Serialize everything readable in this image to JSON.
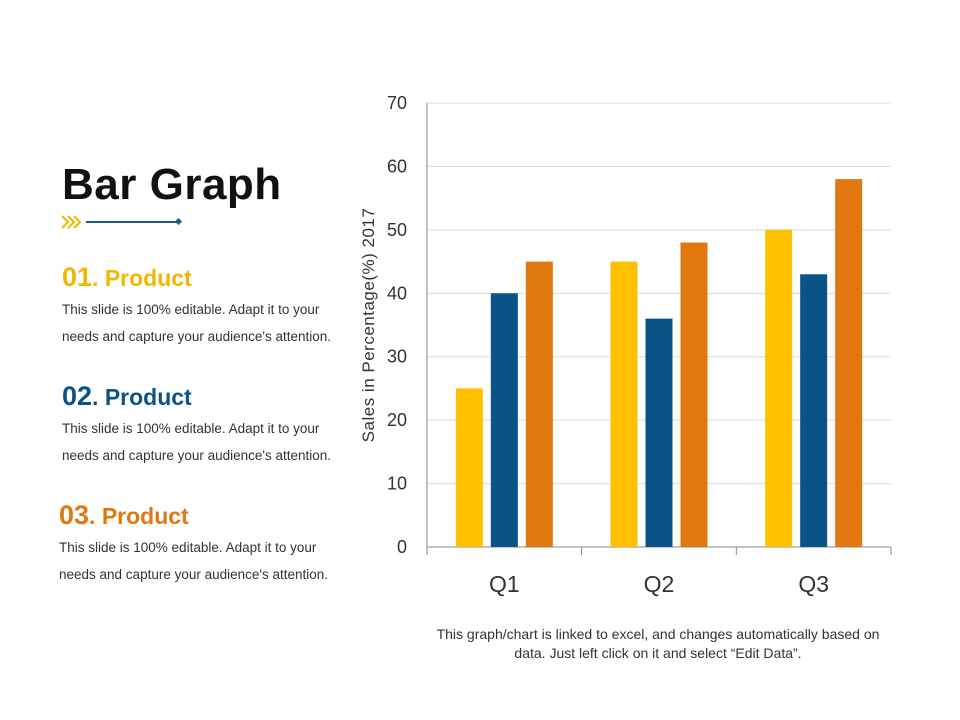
{
  "slide": {
    "title": "Bar Graph",
    "note": "This graph/chart is linked to excel, and changes automatically based on data. Just left click on it and select “Edit Data”."
  },
  "products": [
    {
      "number": "01",
      "name": ". Product",
      "description": "This slide is 100% editable. Adapt it to your needs and capture your audience's attention."
    },
    {
      "number": "02",
      "name": ". Product",
      "description": "This slide is 100% editable. Adapt it to your needs and capture your audience's attention."
    },
    {
      "number": "03",
      "name": ". Product",
      "description": "This slide is 100% editable. Adapt it to your needs and capture your audience's attention."
    }
  ],
  "colors": {
    "yellow": "#FFC000",
    "blue": "#0B5387",
    "orange": "#E0780F",
    "heading_yellow": "#F2B800",
    "heading_orange": "#E0780F",
    "accent_line": "#1F5A86"
  },
  "chart_data": {
    "type": "bar",
    "title": "",
    "xlabel": "",
    "ylabel": "Sales in Percentage(%) 2017",
    "categories": [
      "Q1",
      "Q2",
      "Q3"
    ],
    "series": [
      {
        "name": "Product 01",
        "color": "#FFC000",
        "values": [
          25,
          45,
          50
        ]
      },
      {
        "name": "Product 02",
        "color": "#0B5387",
        "values": [
          40,
          36,
          43
        ]
      },
      {
        "name": "Product 03",
        "color": "#E0780F",
        "values": [
          45,
          48,
          58
        ]
      }
    ],
    "ylim": [
      0,
      70
    ],
    "yticks": [
      0,
      10,
      20,
      30,
      40,
      50,
      60,
      70
    ],
    "grid": true,
    "legend": "none"
  }
}
